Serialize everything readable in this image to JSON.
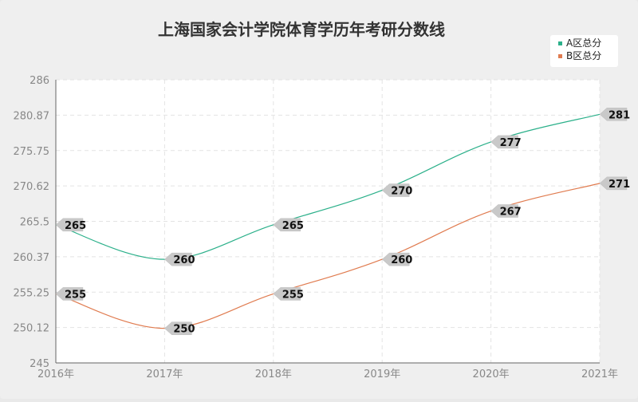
{
  "chart_data": {
    "type": "line",
    "title": "上海国家会计学院体育学历年考研分数线",
    "xlabel": "",
    "ylabel": "",
    "categories": [
      "2016年",
      "2017年",
      "2018年",
      "2019年",
      "2020年",
      "2021年"
    ],
    "ylim": [
      245,
      286
    ],
    "yticks": [
      "245",
      "250.12",
      "255.25",
      "260.37",
      "265.5",
      "270.62",
      "275.75",
      "280.87",
      "286"
    ],
    "grid": true,
    "legend_position": "top-right",
    "smooth": true,
    "series": [
      {
        "name": "A区总分",
        "color": "#2bb08a",
        "values": [
          265,
          260,
          265,
          270,
          277,
          281
        ],
        "labels": [
          "265",
          "260",
          "265",
          "270",
          "277",
          "281"
        ]
      },
      {
        "name": "B区总分",
        "color": "#e07b4f",
        "values": [
          255,
          250,
          255,
          260,
          267,
          271
        ],
        "labels": [
          "255",
          "250",
          "255",
          "260",
          "267",
          "271"
        ]
      }
    ]
  }
}
